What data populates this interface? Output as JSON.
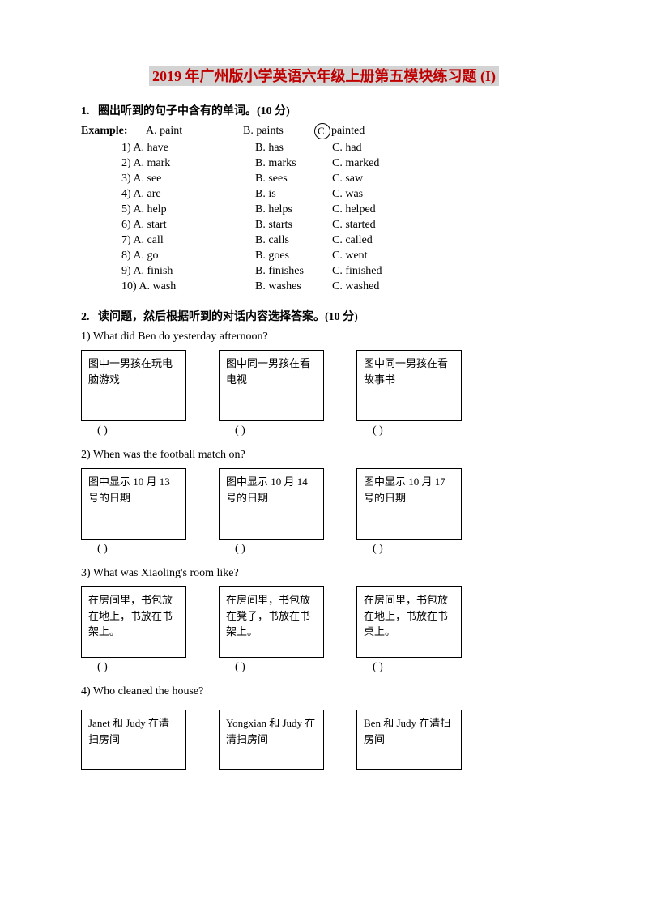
{
  "title": "2019 年广州版小学英语六年级上册第五模块练习题 (I)",
  "section1": {
    "header_num": "1.",
    "header_text": "圈出听到的句子中含有的单词。(10 分)",
    "example_label": "Example:",
    "example_a": "A. paint",
    "example_b": "B. paints",
    "example_c_letter": "C.",
    "example_c_word": "painted",
    "rows": [
      {
        "n": "1)",
        "a": "A. have",
        "b": "B. has",
        "c": "C. had"
      },
      {
        "n": "2)",
        "a": "A. mark",
        "b": "B. marks",
        "c": "C. marked"
      },
      {
        "n": "3)",
        "a": "A. see",
        "b": "B. sees",
        "c": "C. saw"
      },
      {
        "n": "4)",
        "a": "A. are",
        "b": "B. is",
        "c": "C. was"
      },
      {
        "n": "5)",
        "a": "A. help",
        "b": "B. helps",
        "c": "C. helped"
      },
      {
        "n": "6)",
        "a": "A. start",
        "b": "B. starts",
        "c": "C. started"
      },
      {
        "n": "7)",
        "a": "A. call",
        "b": "B. calls",
        "c": "C. called"
      },
      {
        "n": "8)",
        "a": "A. go",
        "b": "B. goes",
        "c": "C. went"
      },
      {
        "n": "9)",
        "a": "A. finish",
        "b": "B. finishes",
        "c": "C. finished"
      },
      {
        "n": "10)",
        "a": "A. wash",
        "b": "B. washes",
        "c": "C. washed"
      }
    ]
  },
  "section2": {
    "header_num": "2.",
    "header_text": "读问题，然后根据听到的对话内容选择答案。(10 分)",
    "paren": "(      )",
    "questions": [
      {
        "text": "1) What did Ben do yesterday afternoon?",
        "opts": [
          "图中一男孩在玩电脑游戏",
          "图中同一男孩在看电视",
          "图中同一男孩在看故事书"
        ]
      },
      {
        "text": "2) When was the football match on?",
        "opts": [
          "图中显示 10 月 13 号的日期",
          "图中显示 10 月 14 号的日期",
          "图中显示 10 月 17 号的日期"
        ]
      },
      {
        "text": "3) What was Xiaoling's room like?",
        "opts": [
          "在房间里，书包放在地上，书放在书架上。",
          "在房间里，书包放在凳子，书放在书架上。",
          "在房间里，书包放在地上，书放在书桌上。"
        ]
      },
      {
        "text": "4) Who cleaned the house?",
        "opts": [
          "Janet 和 Judy 在清扫房间",
          "Yongxian 和 Judy 在清扫房间",
          "Ben 和 Judy 在清扫房间"
        ]
      }
    ]
  }
}
